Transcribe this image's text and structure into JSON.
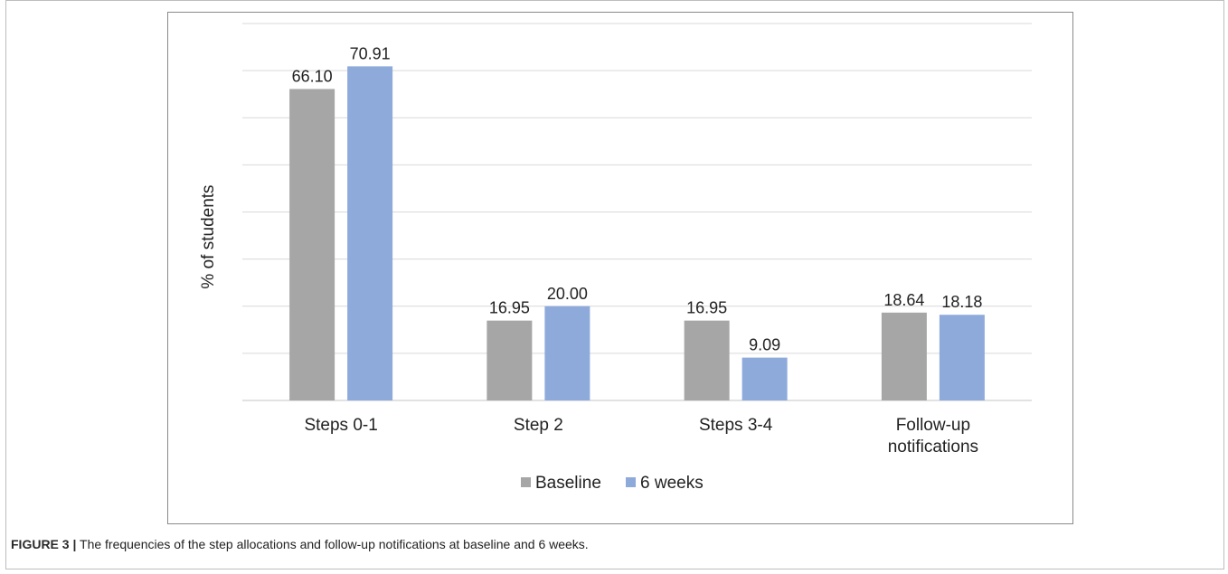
{
  "colors": {
    "baseline": "#a6a6a6",
    "six_weeks": "#8eaadb",
    "gridline": "#d9d9d9"
  },
  "caption": {
    "label": "FIGURE 3 |",
    "text": " The frequencies of the step allocations and follow-up notifications at baseline and 6 weeks."
  },
  "chart_data": {
    "type": "bar",
    "title": "",
    "xlabel": "",
    "ylabel": "% of students",
    "ylim": [
      0,
      80
    ],
    "grid": true,
    "legend": "bottom",
    "categories": [
      [
        "Steps 0-1"
      ],
      [
        "Step 2"
      ],
      [
        "Steps 3-4"
      ],
      [
        "Follow-up",
        "notifications"
      ]
    ],
    "series": [
      {
        "name": "Baseline",
        "values": [
          66.1,
          16.95,
          16.95,
          18.64
        ],
        "labels": [
          "66.10",
          "16.95",
          "16.95",
          "18.64"
        ]
      },
      {
        "name": "6 weeks",
        "values": [
          70.91,
          20.0,
          9.09,
          18.18
        ],
        "labels": [
          "70.91",
          "20.00",
          "9.09",
          "18.18"
        ]
      }
    ]
  }
}
